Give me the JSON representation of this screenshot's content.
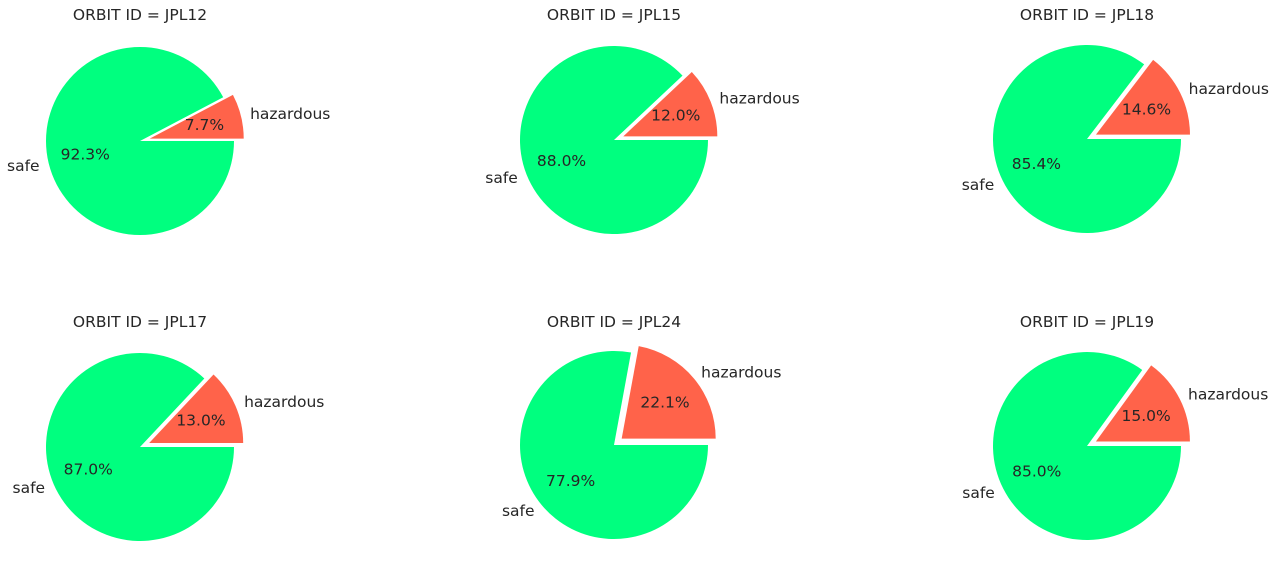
{
  "chart_data": [
    {
      "type": "pie",
      "title": "ORBIT ID = JPL12",
      "labels": [
        "hazardous",
        "safe"
      ],
      "values": [
        7.7,
        92.3
      ],
      "value_labels": [
        "7.7%",
        "92.3%"
      ],
      "explode": [
        1,
        0
      ]
    },
    {
      "type": "pie",
      "title": "ORBIT ID = JPL15",
      "labels": [
        "hazardous",
        "safe"
      ],
      "values": [
        12.0,
        88.0
      ],
      "value_labels": [
        "12.0%",
        "88.0%"
      ],
      "explode": [
        1,
        0
      ]
    },
    {
      "type": "pie",
      "title": "ORBIT ID = JPL18",
      "labels": [
        "hazardous",
        "safe"
      ],
      "values": [
        14.6,
        85.4
      ],
      "value_labels": [
        "14.6%",
        "85.4%"
      ],
      "explode": [
        1,
        0
      ]
    },
    {
      "type": "pie",
      "title": "ORBIT ID = JPL17",
      "labels": [
        "hazardous",
        "safe"
      ],
      "values": [
        13.0,
        87.0
      ],
      "value_labels": [
        "13.0%",
        "87.0%"
      ],
      "explode": [
        1,
        0
      ]
    },
    {
      "type": "pie",
      "title": "ORBIT ID = JPL24",
      "labels": [
        "hazardous",
        "safe"
      ],
      "values": [
        22.1,
        77.9
      ],
      "value_labels": [
        "22.1%",
        "77.9%"
      ],
      "explode": [
        1,
        0
      ]
    },
    {
      "type": "pie",
      "title": "ORBIT ID = JPL19",
      "labels": [
        "hazardous",
        "safe"
      ],
      "values": [
        15.0,
        85.0
      ],
      "value_labels": [
        "15.0%",
        "85.0%"
      ],
      "explode": [
        1,
        0
      ]
    }
  ],
  "colors": {
    "hazardous": "#ff634a",
    "safe": "#00ff7f"
  }
}
